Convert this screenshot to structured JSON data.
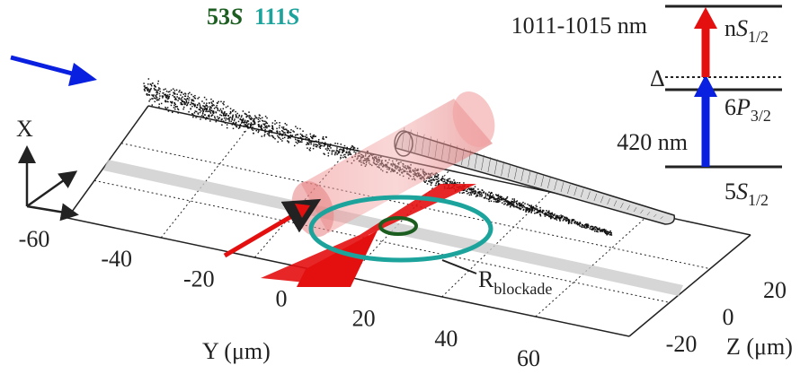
{
  "legend": [
    {
      "number": "53",
      "letter": "S",
      "color": "#1b5e20"
    },
    {
      "number": "111",
      "letter": "S",
      "color": "#1ba39c"
    }
  ],
  "levels": {
    "upper_wavelength": "1011-1015 nm",
    "upper_state": {
      "prefix": "n",
      "letter": "S",
      "sub": "1/2"
    },
    "detuning": "Δ",
    "mid_state": {
      "prefix": "6",
      "letter": "P",
      "sub": "3/2"
    },
    "lower_wavelength": "420 nm",
    "ground_state": {
      "prefix": "5",
      "letter": "S",
      "sub": "1/2"
    }
  },
  "axes": {
    "x_label": "X",
    "y_label": "Y (μm)",
    "z_label": "Z (μm)",
    "y_ticks": [
      -60,
      -40,
      -20,
      0,
      20,
      40,
      60
    ],
    "z_ticks": [
      20,
      0,
      -20
    ]
  },
  "blockade": {
    "main": "R",
    "sub": "blockade"
  }
}
